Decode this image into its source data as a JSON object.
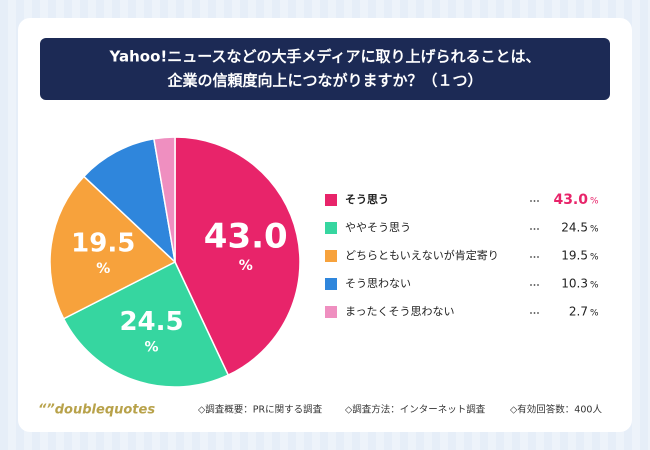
{
  "chart_data": {
    "type": "pie",
    "title": [
      "Yahoo!ニュースなどの大手メディアに取り上げられることは、",
      "企業の信頼度向上につながりますか？（１つ）"
    ],
    "categories": [
      "そう思う",
      "ややそう思う",
      "どちらともいえないが肯定寄り",
      "そう思わない",
      "まったくそう思わない"
    ],
    "values": [
      43.0,
      24.5,
      19.5,
      10.3,
      2.7
    ],
    "value_labels": [
      "43.0",
      "24.5",
      "19.5",
      "10.3",
      "2.7"
    ],
    "unit": "%",
    "colors": [
      "#e8246a",
      "#36d6a0",
      "#f7a23c",
      "#2f86dc",
      "#ef8fc0"
    ]
  },
  "footer": {
    "brand": "“”doublequotes",
    "notes": [
      "◇調査概要：PRに関する調査",
      "◇調査方法：インターネット調査",
      "◇有効回答数：400人"
    ]
  }
}
